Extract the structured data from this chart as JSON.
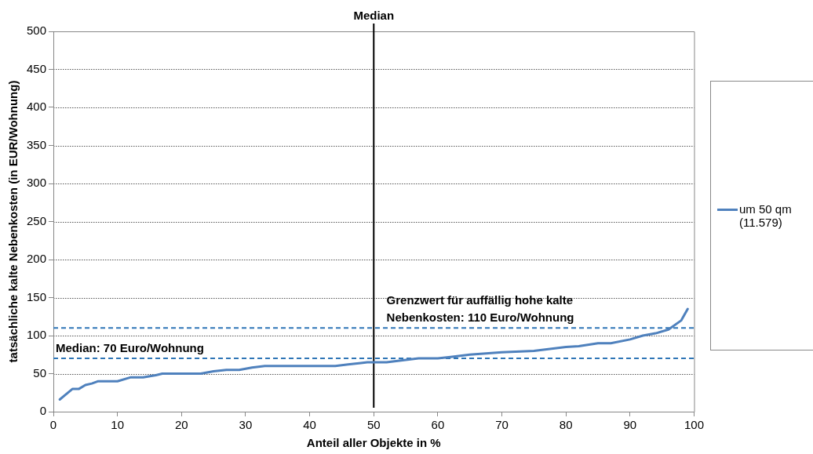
{
  "chart_data": {
    "type": "line",
    "xlabel": "Anteil aller Objekte in %",
    "ylabel": "tatsächliche kalte Nebenkosten (in EUR/Wohnung)",
    "x": [
      1,
      3,
      4,
      5,
      6,
      7,
      10,
      12,
      14,
      16,
      17,
      23,
      25,
      27,
      29,
      31,
      33,
      36,
      44,
      46,
      48,
      49,
      52,
      54,
      57,
      60,
      62,
      65,
      70,
      75,
      80,
      82,
      85,
      87,
      90,
      92,
      94,
      96,
      98,
      99
    ],
    "series": [
      {
        "name": "um 50 qm (11.579)",
        "color": "#4f81bd",
        "values": [
          16,
          30,
          30,
          35,
          37,
          40,
          40,
          45,
          45,
          48,
          50,
          50,
          53,
          55,
          55,
          58,
          60,
          60,
          60,
          62,
          64,
          65,
          65,
          67,
          70,
          70,
          72,
          75,
          78,
          80,
          85,
          86,
          90,
          90,
          95,
          100,
          103,
          108,
          120,
          135
        ]
      }
    ],
    "xlim": [
      0,
      100
    ],
    "xticks": [
      0,
      10,
      20,
      30,
      40,
      50,
      60,
      70,
      80,
      90,
      100
    ],
    "ylim": [
      0,
      500
    ],
    "yticks": [
      0,
      50,
      100,
      150,
      200,
      250,
      300,
      350,
      400,
      450,
      500
    ],
    "grid": "y",
    "legend": "right",
    "marker": "none",
    "line_style": "solid",
    "ref_lines": [
      {
        "axis": "y",
        "value": 70,
        "label": "Median: 70 Euro/Wohnung",
        "color": "#2e75b6",
        "line_style": "dashed"
      },
      {
        "axis": "y",
        "value": 110,
        "label": "Grenzwert für auffällig hohe kalte Nebenkosten: 110 Euro/Wohnung",
        "color": "#2e75b6",
        "line_style": "dashed"
      },
      {
        "axis": "x",
        "value": 50,
        "label": "Median",
        "color": "#000000",
        "line_style": "solid"
      }
    ]
  }
}
